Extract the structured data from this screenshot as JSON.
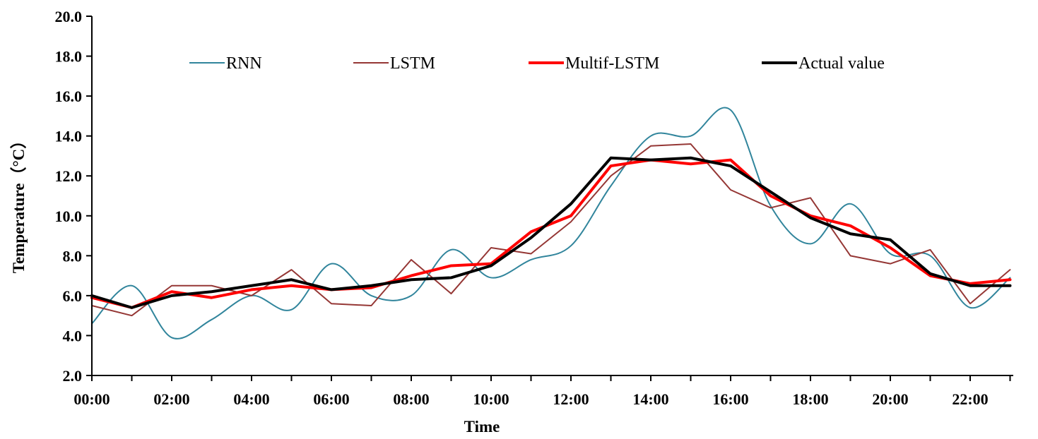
{
  "chart_data": {
    "type": "line",
    "xlabel": "Time",
    "ylabel": "Temperature（°C）",
    "ylim": [
      2.0,
      20.0
    ],
    "yticks": [
      "2.0",
      "4.0",
      "6.0",
      "8.0",
      "10.0",
      "12.0",
      "14.0",
      "16.0",
      "18.0",
      "20.0"
    ],
    "xticks": [
      "00:00",
      "02:00",
      "04:00",
      "06:00",
      "08:00",
      "10:00",
      "12:00",
      "14:00",
      "16:00",
      "18:00",
      "20:00",
      "22:00"
    ],
    "x": [
      "00:00",
      "01:00",
      "02:00",
      "03:00",
      "04:00",
      "05:00",
      "06:00",
      "07:00",
      "08:00",
      "09:00",
      "10:00",
      "11:00",
      "12:00",
      "13:00",
      "14:00",
      "15:00",
      "16:00",
      "17:00",
      "18:00",
      "19:00",
      "20:00",
      "21:00",
      "22:00",
      "23:00"
    ],
    "legend_position": "top",
    "grid": false,
    "series": [
      {
        "name": "RNN",
        "color": "#31859c",
        "smooth": true,
        "values": [
          4.6,
          6.5,
          3.9,
          4.8,
          6.0,
          5.3,
          7.6,
          6.0,
          6.0,
          8.3,
          6.9,
          7.8,
          8.5,
          11.5,
          14.0,
          14.0,
          15.3,
          10.5,
          8.6,
          10.6,
          8.1,
          8.0,
          5.4,
          6.9
        ]
      },
      {
        "name": "LSTM",
        "color": "#953735",
        "smooth": false,
        "values": [
          5.5,
          5.0,
          6.5,
          6.5,
          6.0,
          7.3,
          5.6,
          5.5,
          7.8,
          6.1,
          8.4,
          8.1,
          9.7,
          12.0,
          13.5,
          13.6,
          11.3,
          10.4,
          10.9,
          8.0,
          7.6,
          8.3,
          5.6,
          7.3
        ]
      },
      {
        "name": "Multif-LSTM",
        "color": "#ff0000",
        "smooth": false,
        "values": [
          5.9,
          5.4,
          6.2,
          5.9,
          6.3,
          6.5,
          6.3,
          6.4,
          7.0,
          7.5,
          7.6,
          9.2,
          10.0,
          12.5,
          12.8,
          12.6,
          12.8,
          11.0,
          10.0,
          9.5,
          8.4,
          7.0,
          6.6,
          6.8
        ]
      },
      {
        "name": "Actual value",
        "color": "#000000",
        "smooth": false,
        "values": [
          6.0,
          5.4,
          6.0,
          6.2,
          6.5,
          6.8,
          6.3,
          6.5,
          6.8,
          6.9,
          7.5,
          8.9,
          10.6,
          12.9,
          12.8,
          12.9,
          12.5,
          11.2,
          9.9,
          9.1,
          8.8,
          7.1,
          6.5,
          6.5
        ]
      }
    ]
  }
}
